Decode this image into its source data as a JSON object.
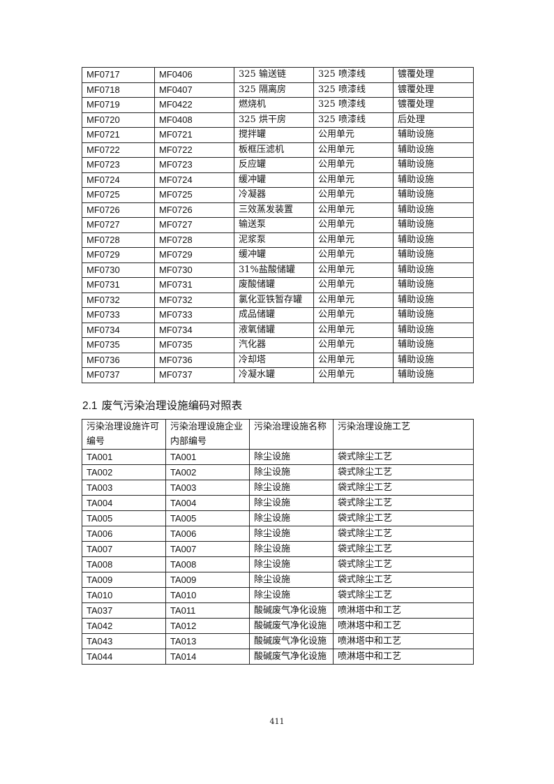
{
  "table1": {
    "rows": [
      [
        "MF0717",
        "MF0406",
        "325 输送链",
        "325 喷漆线",
        "镀覆处理"
      ],
      [
        "MF0718",
        "MF0407",
        "325 隔离房",
        "325 喷漆线",
        "镀覆处理"
      ],
      [
        "MF0719",
        "MF0422",
        "燃烧机",
        "325 喷漆线",
        "镀覆处理"
      ],
      [
        "MF0720",
        "MF0408",
        "325 烘干房",
        "325 喷漆线",
        "后处理"
      ],
      [
        "MF0721",
        "MF0721",
        "搅拌罐",
        "公用单元",
        "辅助设施"
      ],
      [
        "MF0722",
        "MF0722",
        "板框压滤机",
        "公用单元",
        "辅助设施"
      ],
      [
        "MF0723",
        "MF0723",
        "反应罐",
        "公用单元",
        "辅助设施"
      ],
      [
        "MF0724",
        "MF0724",
        "缓冲罐",
        "公用单元",
        "辅助设施"
      ],
      [
        "MF0725",
        "MF0725",
        "冷凝器",
        "公用单元",
        "辅助设施"
      ],
      [
        "MF0726",
        "MF0726",
        "三效蒸发装置",
        "公用单元",
        "辅助设施"
      ],
      [
        "MF0727",
        "MF0727",
        "输送泵",
        "公用单元",
        "辅助设施"
      ],
      [
        "MF0728",
        "MF0728",
        "泥浆泵",
        "公用单元",
        "辅助设施"
      ],
      [
        "MF0729",
        "MF0729",
        "缓冲罐",
        "公用单元",
        "辅助设施"
      ],
      [
        "MF0730",
        "MF0730",
        "31%盐酸储罐",
        "公用单元",
        "辅助设施"
      ],
      [
        "MF0731",
        "MF0731",
        "废酸储罐",
        "公用单元",
        "辅助设施"
      ],
      [
        "MF0732",
        "MF0732",
        "氯化亚铁暂存罐",
        "公用单元",
        "辅助设施"
      ],
      [
        "MF0733",
        "MF0733",
        "成品储罐",
        "公用单元",
        "辅助设施"
      ],
      [
        "MF0734",
        "MF0734",
        "液氧储罐",
        "公用单元",
        "辅助设施"
      ],
      [
        "MF0735",
        "MF0735",
        "汽化器",
        "公用单元",
        "辅助设施"
      ],
      [
        "MF0736",
        "MF0736",
        "冷却塔",
        "公用单元",
        "辅助设施"
      ],
      [
        "MF0737",
        "MF0737",
        "冷凝水罐",
        "公用单元",
        "辅助设施"
      ]
    ]
  },
  "section": {
    "number": "2.1",
    "title": "废气污染治理设施编码对照表"
  },
  "table2": {
    "headers": [
      "污染治理设施许可编号",
      "污染治理设施企业内部编号",
      "污染治理设施名称",
      "污染治理设施工艺"
    ],
    "rows": [
      [
        "TA001",
        "TA001",
        "除尘设施",
        "袋式除尘工艺"
      ],
      [
        "TA002",
        "TA002",
        "除尘设施",
        "袋式除尘工艺"
      ],
      [
        "TA003",
        "TA003",
        "除尘设施",
        "袋式除尘工艺"
      ],
      [
        "TA004",
        "TA004",
        "除尘设施",
        "袋式除尘工艺"
      ],
      [
        "TA005",
        "TA005",
        "除尘设施",
        "袋式除尘工艺"
      ],
      [
        "TA006",
        "TA006",
        "除尘设施",
        "袋式除尘工艺"
      ],
      [
        "TA007",
        "TA007",
        "除尘设施",
        "袋式除尘工艺"
      ],
      [
        "TA008",
        "TA008",
        "除尘设施",
        "袋式除尘工艺"
      ],
      [
        "TA009",
        "TA009",
        "除尘设施",
        "袋式除尘工艺"
      ],
      [
        "TA010",
        "TA010",
        "除尘设施",
        "袋式除尘工艺"
      ],
      [
        "TA037",
        "TA011",
        "酸碱废气净化设施",
        "喷淋塔中和工艺"
      ],
      [
        "TA042",
        "TA012",
        "酸碱废气净化设施",
        "喷淋塔中和工艺"
      ],
      [
        "TA043",
        "TA013",
        "酸碱废气净化设施",
        "喷淋塔中和工艺"
      ],
      [
        "TA044",
        "TA014",
        "酸碱废气净化设施",
        "喷淋塔中和工艺"
      ]
    ]
  },
  "page_number": "411"
}
